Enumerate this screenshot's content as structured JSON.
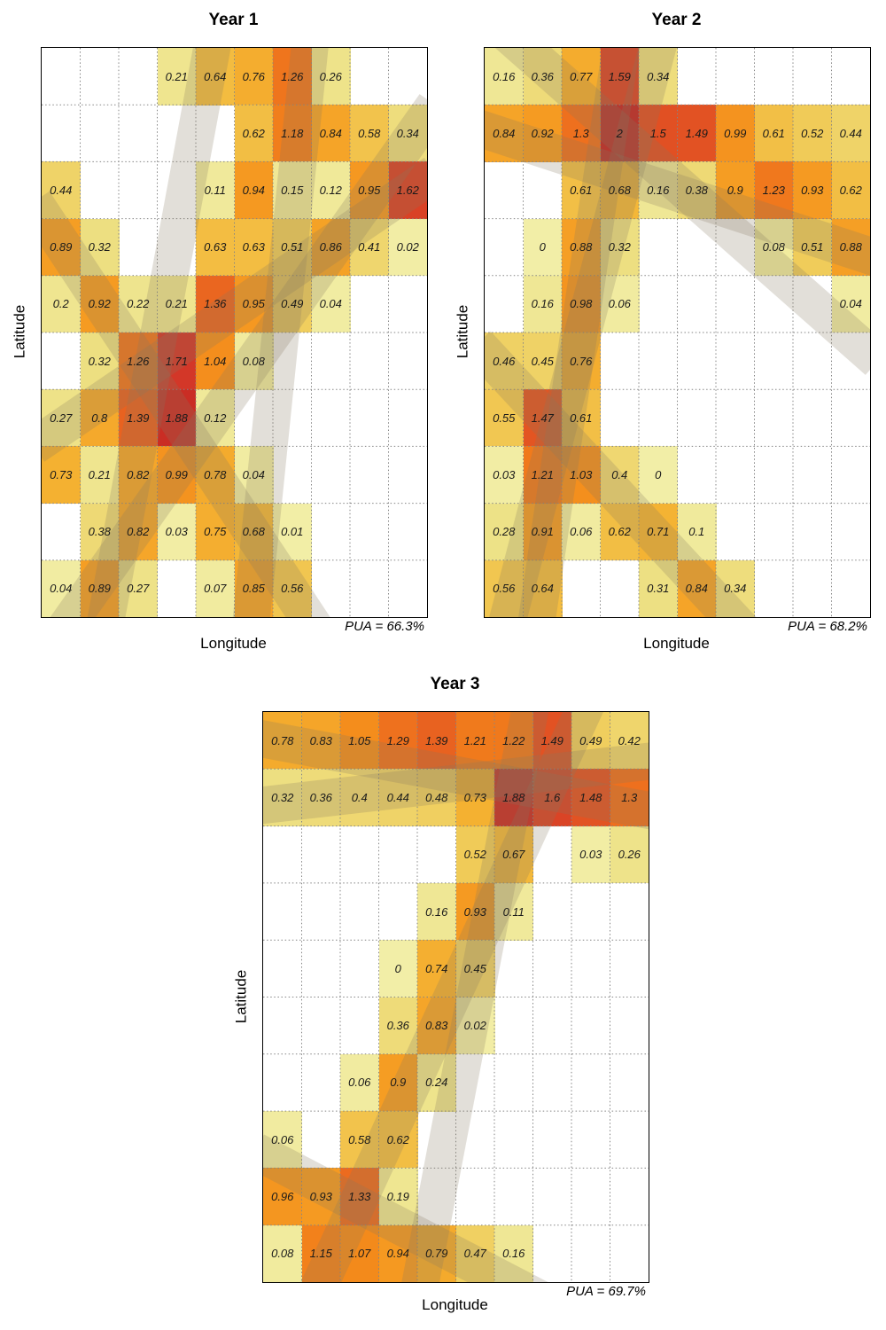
{
  "style": {
    "background": "#ffffff",
    "border_color": "#000000",
    "grid_line_color": "#858585",
    "band_color": "rgba(133,123,95,0.24)",
    "value_text_color": "#1a1a1a",
    "color_anchors": [
      [
        0.0,
        [
          242,
          238,
          167
        ]
      ],
      [
        0.3,
        [
          237,
          225,
          133
        ]
      ],
      [
        0.5,
        [
          240,
          205,
          92
        ]
      ],
      [
        0.7,
        [
          244,
          180,
          52
        ]
      ],
      [
        0.9,
        [
          245,
          157,
          35
        ]
      ],
      [
        1.1,
        [
          243,
          135,
          26
        ]
      ],
      [
        1.3,
        [
          238,
          112,
          30
        ]
      ],
      [
        1.5,
        [
          225,
          80,
          35
        ]
      ],
      [
        1.7,
        [
          211,
          56,
          40
        ]
      ],
      [
        2.0,
        [
          196,
          38,
          34
        ]
      ]
    ]
  },
  "chart_data": [
    {
      "type": "heatmap",
      "title": "Year 1",
      "xlabel": "Longitude",
      "ylabel": "Latitude",
      "annotation": "PUA = 66.3%",
      "n_rows": 10,
      "n_cols": 10,
      "value_range": [
        0,
        2
      ],
      "values": [
        [
          null,
          null,
          null,
          0.21,
          0.64,
          0.76,
          1.26,
          0.26,
          null,
          null
        ],
        [
          null,
          null,
          null,
          null,
          null,
          0.62,
          1.18,
          0.84,
          0.58,
          0.34
        ],
        [
          0.44,
          null,
          null,
          null,
          0.11,
          0.94,
          0.15,
          0.12,
          0.95,
          1.62
        ],
        [
          0.89,
          0.32,
          null,
          null,
          0.63,
          0.63,
          0.51,
          0.86,
          0.41,
          0.02
        ],
        [
          0.2,
          0.92,
          0.22,
          0.21,
          1.36,
          0.95,
          0.49,
          0.04,
          null,
          null
        ],
        [
          null,
          0.32,
          1.26,
          1.71,
          1.04,
          0.08,
          null,
          null,
          null,
          null
        ],
        [
          0.27,
          0.8,
          1.39,
          1.88,
          0.12,
          null,
          null,
          null,
          null,
          null
        ],
        [
          0.73,
          0.21,
          0.82,
          0.99,
          0.78,
          0.04,
          null,
          null,
          null,
          null
        ],
        [
          null,
          0.38,
          0.82,
          0.03,
          0.75,
          0.68,
          0.01,
          null,
          null,
          null
        ],
        [
          0.04,
          0.89,
          0.27,
          null,
          0.07,
          0.85,
          0.56,
          null,
          null,
          null
        ]
      ],
      "bands": [
        {
          "x1": -0.02,
          "y1": 0.7,
          "x2": 1.02,
          "y2": 0.22
        },
        {
          "x1": -0.02,
          "y1": 0.27,
          "x2": 0.72,
          "y2": 1.03
        },
        {
          "x1": 0.45,
          "y1": -0.03,
          "x2": 0.16,
          "y2": 1.03
        },
        {
          "x1": 0.7,
          "y1": -0.03,
          "x2": 0.54,
          "y2": 1.03
        },
        {
          "x1": 1.02,
          "y1": 0.1,
          "x2": 0.05,
          "y2": 1.03
        }
      ]
    },
    {
      "type": "heatmap",
      "title": "Year 2",
      "xlabel": "Longitude",
      "ylabel": "Latitude",
      "annotation": "PUA = 68.2%",
      "n_rows": 10,
      "n_cols": 10,
      "value_range": [
        0,
        2
      ],
      "values": [
        [
          0.16,
          0.36,
          0.77,
          1.59,
          0.34,
          null,
          null,
          null,
          null,
          null
        ],
        [
          0.84,
          0.92,
          1.3,
          2,
          1.5,
          1.49,
          0.99,
          0.61,
          0.52,
          0.44
        ],
        [
          null,
          null,
          0.61,
          0.68,
          0.16,
          0.38,
          0.9,
          1.23,
          0.93,
          0.62
        ],
        [
          null,
          0,
          0.88,
          0.32,
          null,
          null,
          null,
          0.08,
          0.51,
          0.88
        ],
        [
          null,
          0.16,
          0.98,
          0.06,
          null,
          null,
          null,
          null,
          null,
          0.04
        ],
        [
          0.46,
          0.45,
          0.76,
          null,
          null,
          null,
          null,
          null,
          null,
          null
        ],
        [
          0.55,
          1.47,
          0.61,
          null,
          null,
          null,
          null,
          null,
          null,
          null
        ],
        [
          0.03,
          1.21,
          1.03,
          0.4,
          0,
          null,
          null,
          null,
          null,
          null
        ],
        [
          0.28,
          0.91,
          0.06,
          0.62,
          0.71,
          0.1,
          null,
          null,
          null,
          null
        ],
        [
          0.56,
          0.64,
          null,
          null,
          0.31,
          0.84,
          0.34,
          null,
          null,
          null
        ]
      ],
      "bands": [
        {
          "x1": -0.02,
          "y1": 0.14,
          "x2": 1.02,
          "y2": 0.37
        },
        {
          "x1": 0.46,
          "y1": -0.03,
          "x2": 0.05,
          "y2": 1.03
        },
        {
          "x1": 0.36,
          "y1": -0.03,
          "x2": 0.13,
          "y2": 1.03
        },
        {
          "x1": -0.02,
          "y1": 0.52,
          "x2": 0.68,
          "y2": 1.03
        },
        {
          "x1": 0.05,
          "y1": -0.03,
          "x2": 1.02,
          "y2": 0.55
        }
      ]
    },
    {
      "type": "heatmap",
      "title": "Year 3",
      "xlabel": "Longitude",
      "ylabel": "Latitude",
      "annotation": "PUA = 69.7%",
      "n_rows": 10,
      "n_cols": 10,
      "value_range": [
        0,
        2
      ],
      "values": [
        [
          0.78,
          0.83,
          1.05,
          1.29,
          1.39,
          1.21,
          1.22,
          1.49,
          0.49,
          0.42
        ],
        [
          0.32,
          0.36,
          0.4,
          0.44,
          0.48,
          0.73,
          1.88,
          1.6,
          1.48,
          1.3
        ],
        [
          null,
          null,
          null,
          null,
          null,
          0.52,
          0.67,
          null,
          0.03,
          0.26
        ],
        [
          null,
          null,
          null,
          null,
          0.16,
          0.93,
          0.11,
          null,
          null,
          null
        ],
        [
          null,
          null,
          null,
          0,
          0.74,
          0.45,
          null,
          null,
          null,
          null
        ],
        [
          null,
          null,
          null,
          0.36,
          0.83,
          0.02,
          null,
          null,
          null,
          null
        ],
        [
          null,
          null,
          0.06,
          0.9,
          0.24,
          null,
          null,
          null,
          null,
          null
        ],
        [
          0.06,
          null,
          0.58,
          0.62,
          null,
          null,
          null,
          null,
          null,
          null
        ],
        [
          0.96,
          0.93,
          1.33,
          0.19,
          null,
          null,
          null,
          null,
          null,
          null
        ],
        [
          0.08,
          1.15,
          1.07,
          0.94,
          0.79,
          0.47,
          0.16,
          null,
          null,
          null
        ]
      ],
      "bands": [
        {
          "x1": -0.02,
          "y1": 0.165,
          "x2": 1.02,
          "y2": 0.085
        },
        {
          "x1": -0.02,
          "y1": 0.045,
          "x2": 1.02,
          "y2": 0.175
        },
        {
          "x1": 0.85,
          "y1": -0.03,
          "x2": 0.13,
          "y2": 1.03
        },
        {
          "x1": 0.7,
          "y1": -0.03,
          "x2": 0.4,
          "y2": 1.03
        },
        {
          "x1": -0.02,
          "y1": 0.77,
          "x2": 0.72,
          "y2": 1.03
        }
      ]
    }
  ]
}
